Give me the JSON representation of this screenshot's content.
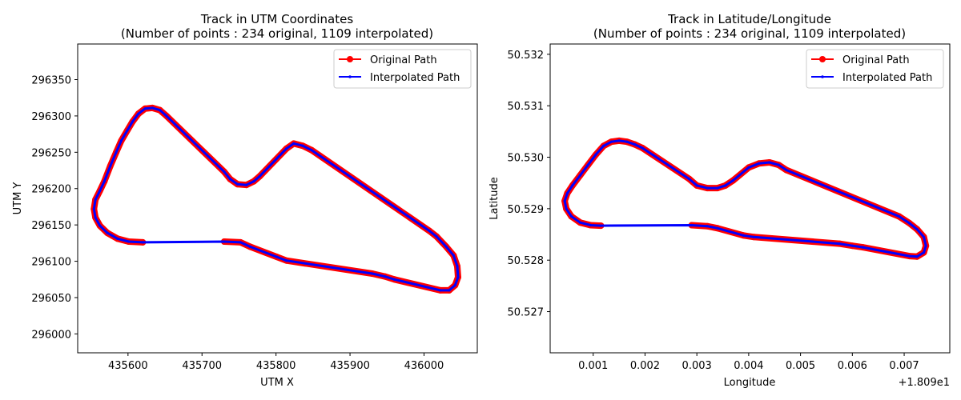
{
  "chart_data": [
    {
      "type": "line",
      "title_line1": "Track in UTM Coordinates",
      "title_line2": "(Number of points : 234 original, 1109 interpolated)",
      "xlabel": "UTM X",
      "ylabel": "UTM Y",
      "xlim": [
        435532,
        436072
      ],
      "ylim": [
        295974,
        296399
      ],
      "xticks": [
        435600,
        435700,
        435800,
        435900,
        436000
      ],
      "xtick_labels": [
        "435600",
        "435700",
        "435800",
        "435900",
        "436000"
      ],
      "yticks": [
        296000,
        296050,
        296100,
        296150,
        296200,
        296250,
        296300,
        296350
      ],
      "ytick_labels": [
        "296000",
        "296050",
        "296100",
        "296150",
        "296200",
        "296250",
        "296300",
        "296350"
      ],
      "offset_text": "",
      "grid": false,
      "legend_position": "top-right",
      "series": [
        {
          "name": "Original Path",
          "color": "#ff0000",
          "points": [
            [
              435620,
              296126
            ],
            [
              435601,
              296127
            ],
            [
              435586,
              296131
            ],
            [
              435572,
              296139
            ],
            [
              435562,
              296149
            ],
            [
              435556,
              296160
            ],
            [
              435554,
              296172
            ],
            [
              435556,
              296185
            ],
            [
              435562,
              296197
            ],
            [
              435568,
              296210
            ],
            [
              435576,
              296231
            ],
            [
              435584,
              296250
            ],
            [
              435591,
              296266
            ],
            [
              435599,
              296280
            ],
            [
              435606,
              296292
            ],
            [
              435614,
              296303
            ],
            [
              435623,
              296310
            ],
            [
              435633,
              296311
            ],
            [
              435643,
              296308
            ],
            [
              435652,
              296300
            ],
            [
              435730,
              296223
            ],
            [
              435738,
              296213
            ],
            [
              435748,
              296206
            ],
            [
              435760,
              296205
            ],
            [
              435770,
              296210
            ],
            [
              435778,
              296217
            ],
            [
              435814,
              296255
            ],
            [
              435824,
              296262
            ],
            [
              435836,
              296259
            ],
            [
              435848,
              296253
            ],
            [
              436007,
              296142
            ],
            [
              436017,
              296134
            ],
            [
              436030,
              296120
            ],
            [
              436040,
              296108
            ],
            [
              436045,
              296093
            ],
            [
              436046,
              296078
            ],
            [
              436042,
              296067
            ],
            [
              436034,
              296060
            ],
            [
              436022,
              296060
            ],
            [
              435960,
              296075
            ],
            [
              435947,
              296079
            ],
            [
              435930,
              296083
            ],
            [
              435814,
              296101
            ],
            [
              435801,
              296106
            ],
            [
              435765,
              296120
            ],
            [
              435752,
              296126
            ],
            [
              435730,
              296127
            ]
          ]
        },
        {
          "name": "Interpolated Path",
          "color": "#0000ff",
          "points": [
            [
              435620,
              296126
            ],
            [
              435601,
              296127
            ],
            [
              435586,
              296131
            ],
            [
              435572,
              296139
            ],
            [
              435562,
              296149
            ],
            [
              435556,
              296160
            ],
            [
              435554,
              296172
            ],
            [
              435556,
              296185
            ],
            [
              435562,
              296197
            ],
            [
              435568,
              296210
            ],
            [
              435576,
              296231
            ],
            [
              435584,
              296250
            ],
            [
              435591,
              296266
            ],
            [
              435599,
              296280
            ],
            [
              435606,
              296292
            ],
            [
              435614,
              296303
            ],
            [
              435623,
              296310
            ],
            [
              435633,
              296311
            ],
            [
              435643,
              296308
            ],
            [
              435652,
              296300
            ],
            [
              435730,
              296223
            ],
            [
              435738,
              296213
            ],
            [
              435748,
              296206
            ],
            [
              435760,
              296205
            ],
            [
              435770,
              296210
            ],
            [
              435778,
              296217
            ],
            [
              435814,
              296255
            ],
            [
              435824,
              296262
            ],
            [
              435836,
              296259
            ],
            [
              435848,
              296253
            ],
            [
              436007,
              296142
            ],
            [
              436017,
              296134
            ],
            [
              436030,
              296120
            ],
            [
              436040,
              296108
            ],
            [
              436045,
              296093
            ],
            [
              436046,
              296078
            ],
            [
              436042,
              296067
            ],
            [
              436034,
              296060
            ],
            [
              436022,
              296060
            ],
            [
              435960,
              296075
            ],
            [
              435947,
              296079
            ],
            [
              435930,
              296083
            ],
            [
              435814,
              296101
            ],
            [
              435801,
              296106
            ],
            [
              435765,
              296120
            ],
            [
              435752,
              296126
            ],
            [
              435730,
              296127
            ],
            [
              435620,
              296126
            ]
          ]
        }
      ]
    },
    {
      "type": "line",
      "title_line1": "Track in Latitude/Longitude",
      "title_line2": "(Number of points : 234 original, 1109 interpolated)",
      "xlabel": "Longitude",
      "ylabel": "Latitude",
      "xlim": [
        0.00017,
        0.00788
      ],
      "ylim": [
        50.5262,
        50.5322
      ],
      "xticks": [
        0.001,
        0.002,
        0.003,
        0.004,
        0.005,
        0.006,
        0.007
      ],
      "xtick_labels": [
        "0.001",
        "0.002",
        "0.003",
        "0.004",
        "0.005",
        "0.006",
        "0.007"
      ],
      "yticks": [
        50.527,
        50.528,
        50.529,
        50.53,
        50.531,
        50.532
      ],
      "ytick_labels": [
        "50.527",
        "50.528",
        "50.529",
        "50.530",
        "50.531",
        "50.532"
      ],
      "offset_text": "+1.809e1",
      "grid": false,
      "legend_position": "top-right",
      "series": [
        {
          "name": "Original Path",
          "color": "#ff0000",
          "points": [
            [
              0.00115,
              50.52867
            ],
            [
              0.00095,
              50.52868
            ],
            [
              0.00075,
              50.52873
            ],
            [
              0.00058,
              50.52885
            ],
            [
              0.00048,
              50.529
            ],
            [
              0.00045,
              50.52915
            ],
            [
              0.0005,
              50.5293
            ],
            [
              0.0006,
              50.52945
            ],
            [
              0.00075,
              50.52965
            ],
            [
              0.0009,
              50.52985
            ],
            [
              0.00105,
              50.53005
            ],
            [
              0.0012,
              50.53022
            ],
            [
              0.00135,
              50.5303
            ],
            [
              0.0015,
              50.53032
            ],
            [
              0.00165,
              50.5303
            ],
            [
              0.0018,
              50.53025
            ],
            [
              0.00195,
              50.53018
            ],
            [
              0.00285,
              50.52958
            ],
            [
              0.003,
              50.52945
            ],
            [
              0.0032,
              50.5294
            ],
            [
              0.0034,
              50.5294
            ],
            [
              0.00355,
              50.52945
            ],
            [
              0.0037,
              50.52955
            ],
            [
              0.004,
              50.5298
            ],
            [
              0.0042,
              50.52988
            ],
            [
              0.0044,
              50.5299
            ],
            [
              0.00458,
              50.52985
            ],
            [
              0.00473,
              50.52975
            ],
            [
              0.0069,
              50.52885
            ],
            [
              0.0071,
              50.52872
            ],
            [
              0.00725,
              50.5286
            ],
            [
              0.00738,
              50.52845
            ],
            [
              0.00742,
              50.52828
            ],
            [
              0.00738,
              50.52815
            ],
            [
              0.00725,
              50.52807
            ],
            [
              0.0071,
              50.52808
            ],
            [
              0.0062,
              50.52825
            ],
            [
              0.006,
              50.52828
            ],
            [
              0.00575,
              50.52832
            ],
            [
              0.0041,
              50.52845
            ],
            [
              0.0039,
              50.52848
            ],
            [
              0.0034,
              50.52862
            ],
            [
              0.0032,
              50.52866
            ],
            [
              0.0029,
              50.52868
            ]
          ]
        },
        {
          "name": "Interpolated Path",
          "color": "#0000ff",
          "points": [
            [
              0.00115,
              50.52867
            ],
            [
              0.00095,
              50.52868
            ],
            [
              0.00075,
              50.52873
            ],
            [
              0.00058,
              50.52885
            ],
            [
              0.00048,
              50.529
            ],
            [
              0.00045,
              50.52915
            ],
            [
              0.0005,
              50.5293
            ],
            [
              0.0006,
              50.52945
            ],
            [
              0.00075,
              50.52965
            ],
            [
              0.0009,
              50.52985
            ],
            [
              0.00105,
              50.53005
            ],
            [
              0.0012,
              50.53022
            ],
            [
              0.00135,
              50.5303
            ],
            [
              0.0015,
              50.53032
            ],
            [
              0.00165,
              50.5303
            ],
            [
              0.0018,
              50.53025
            ],
            [
              0.00195,
              50.53018
            ],
            [
              0.00285,
              50.52958
            ],
            [
              0.003,
              50.52945
            ],
            [
              0.0032,
              50.5294
            ],
            [
              0.0034,
              50.5294
            ],
            [
              0.00355,
              50.52945
            ],
            [
              0.0037,
              50.52955
            ],
            [
              0.004,
              50.5298
            ],
            [
              0.0042,
              50.52988
            ],
            [
              0.0044,
              50.5299
            ],
            [
              0.00458,
              50.52985
            ],
            [
              0.00473,
              50.52975
            ],
            [
              0.0069,
              50.52885
            ],
            [
              0.0071,
              50.52872
            ],
            [
              0.00725,
              50.5286
            ],
            [
              0.00738,
              50.52845
            ],
            [
              0.00742,
              50.52828
            ],
            [
              0.00738,
              50.52815
            ],
            [
              0.00725,
              50.52807
            ],
            [
              0.0071,
              50.52808
            ],
            [
              0.0062,
              50.52825
            ],
            [
              0.006,
              50.52828
            ],
            [
              0.00575,
              50.52832
            ],
            [
              0.0041,
              50.52845
            ],
            [
              0.0039,
              50.52848
            ],
            [
              0.0034,
              50.52862
            ],
            [
              0.0032,
              50.52866
            ],
            [
              0.0029,
              50.52868
            ],
            [
              0.00115,
              50.52867
            ]
          ]
        }
      ]
    }
  ]
}
